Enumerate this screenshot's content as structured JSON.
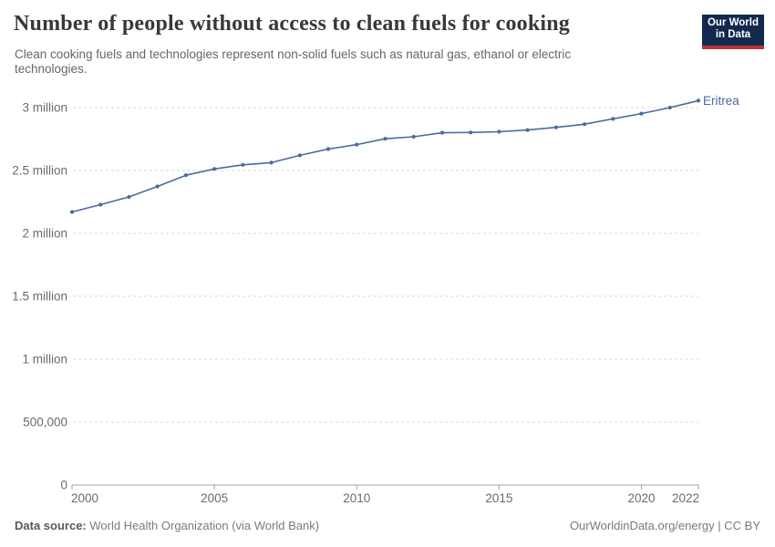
{
  "header": {
    "title": "Number of people without access to clean fuels for cooking",
    "subtitle_lines": [
      "Clean cooking fuels and technologies represent non-solid fuels such as natural gas, ethanol or electric",
      "technologies."
    ]
  },
  "logo": {
    "line1": "Our World",
    "line2": "in Data",
    "bg_color": "#12294e",
    "accent_color": "#c0313f"
  },
  "chart_data": {
    "type": "line",
    "title": "Number of people without access to clean fuels for cooking",
    "xlabel": "",
    "ylabel": "",
    "xlim": [
      2000,
      2022
    ],
    "ylim": [
      0,
      3000000
    ],
    "grid": "horizontal-dashed",
    "legend_position": "end-of-line-label",
    "series": [
      {
        "name": "Eritrea",
        "color": "#4c6a9c",
        "x": [
          2000,
          2001,
          2002,
          2003,
          2004,
          2005,
          2006,
          2007,
          2008,
          2009,
          2010,
          2011,
          2012,
          2013,
          2014,
          2015,
          2016,
          2017,
          2018,
          2019,
          2020,
          2021,
          2022
        ],
        "values": [
          2170000,
          2228000,
          2290000,
          2373000,
          2462000,
          2512000,
          2545000,
          2562000,
          2620000,
          2670000,
          2706000,
          2752000,
          2768000,
          2800000,
          2802000,
          2808000,
          2822000,
          2843000,
          2868000,
          2910000,
          2952000,
          3000000,
          3055000
        ]
      }
    ],
    "yticks": [
      {
        "value": 0,
        "label": "0"
      },
      {
        "value": 500000,
        "label": "500,000"
      },
      {
        "value": 1000000,
        "label": "1 million"
      },
      {
        "value": 1500000,
        "label": "1.5 million"
      },
      {
        "value": 2000000,
        "label": "2 million"
      },
      {
        "value": 2500000,
        "label": "2.5 million"
      },
      {
        "value": 3000000,
        "label": "3 million"
      }
    ],
    "xticks": [
      {
        "year": 2000,
        "label": "2000"
      },
      {
        "year": 2005,
        "label": "2005"
      },
      {
        "year": 2010,
        "label": "2010"
      },
      {
        "year": 2015,
        "label": "2015"
      },
      {
        "year": 2020,
        "label": "2020"
      },
      {
        "year": 2022,
        "label": "2022"
      }
    ],
    "entity_label": "Eritrea"
  },
  "footer": {
    "source_label": "Data source:",
    "source_text": " World Health Organization (via World Bank)",
    "credit": "OurWorldinData.org/energy | CC BY"
  },
  "colors": {
    "line": "#4c6a9c",
    "gridline": "#dadada",
    "axis": "#a3a3a3",
    "tick_text": "#6b6b6b"
  }
}
